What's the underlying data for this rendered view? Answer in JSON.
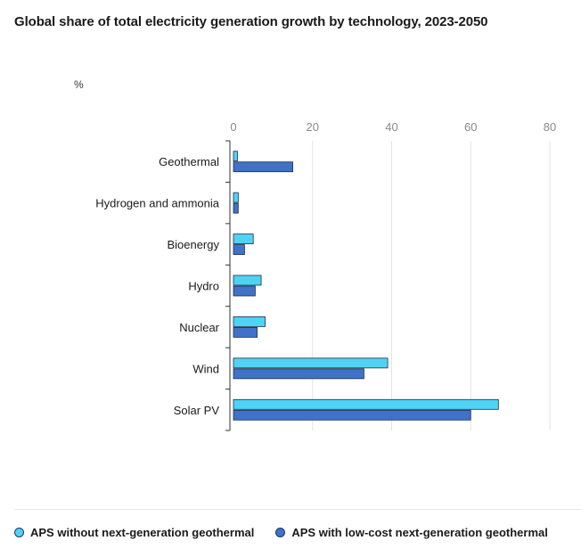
{
  "title": "Global share of total electricity generation growth by technology, 2023-2050",
  "unit_label": "%",
  "colors": {
    "series1": "#4fd3f5",
    "series2": "#3f72c8",
    "stroke": "#1f2d44",
    "grid": "#e3e3e3",
    "tick": "#8a8a8a"
  },
  "chart_data": {
    "type": "bar",
    "orientation": "horizontal",
    "categories": [
      "Geothermal",
      "Hydrogen and ammonia",
      "Bioenergy",
      "Hydro",
      "Nuclear",
      "Wind",
      "Solar PV"
    ],
    "series": [
      {
        "name": "APS without next-generation geothermal",
        "values": [
          1,
          1.2,
          5,
          7,
          8,
          39,
          67
        ]
      },
      {
        "name": "APS with low-cost next-generation geothermal",
        "values": [
          15,
          1.2,
          2.8,
          5.5,
          6,
          33,
          60
        ]
      }
    ],
    "xlim": [
      0,
      80
    ],
    "xticks": [
      "0",
      "20",
      "40",
      "60",
      "80"
    ],
    "ylabel": "%",
    "grid": true,
    "legend_position": "bottom-left"
  }
}
